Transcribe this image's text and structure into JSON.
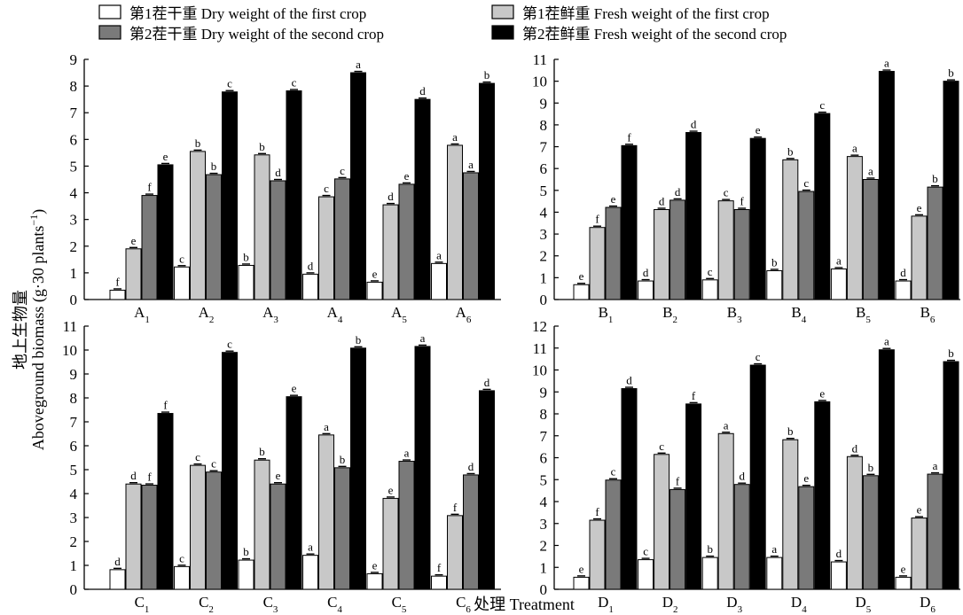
{
  "legend": [
    {
      "label": "第1茬干重 Dry weight of the first crop",
      "color": "#ffffff"
    },
    {
      "label": "第2茬干重 Dry weight of the second crop",
      "color": "#7a7a7a"
    },
    {
      "label": "第1茬鲜重 Fresh weight of the first crop",
      "color": "#c8c8c8"
    },
    {
      "label": "第2茬鲜重 Fresh weight of the second crop",
      "color": "#000000"
    }
  ],
  "ylabel_cn": "地上生物量",
  "ylabel_en": "Aboveground biomass (g·30 plants",
  "ylabel_sup": "−1",
  "ylabel_end": ")",
  "xlabel": "处理 Treatment",
  "chart_data": [
    {
      "type": "bar",
      "panel": "A",
      "categories": [
        "A1",
        "A2",
        "A3",
        "A4",
        "A5",
        "A6"
      ],
      "ylim": [
        0,
        9
      ],
      "series": [
        {
          "name": "第1茬干重 Dry weight of the first crop",
          "values": [
            0.35,
            1.22,
            1.28,
            0.95,
            0.65,
            1.35
          ],
          "sig": [
            "f",
            "c",
            "b",
            "d",
            "e",
            "a"
          ]
        },
        {
          "name": "第1茬鲜重 Fresh weight of the first crop",
          "values": [
            1.9,
            5.55,
            5.42,
            3.85,
            3.55,
            5.78
          ],
          "sig": [
            "e",
            "b",
            "b",
            "c",
            "d",
            "a"
          ]
        },
        {
          "name": "第2茬干重 Dry weight of the second crop",
          "values": [
            3.9,
            4.68,
            4.45,
            4.52,
            4.32,
            4.75
          ],
          "sig": [
            "f",
            "b",
            "d",
            "c",
            "e",
            "a"
          ]
        },
        {
          "name": "第2茬鲜重 Fresh weight of the second crop",
          "values": [
            5.05,
            7.78,
            7.82,
            8.5,
            7.5,
            8.1
          ],
          "sig": [
            "e",
            "c",
            "c",
            "a",
            "d",
            "b"
          ]
        }
      ]
    },
    {
      "type": "bar",
      "panel": "B",
      "categories": [
        "B1",
        "B2",
        "B3",
        "B4",
        "B5",
        "B6"
      ],
      "ylim": [
        0,
        11
      ],
      "series": [
        {
          "name": "第1茬干重 Dry weight of the first crop",
          "values": [
            0.68,
            0.85,
            0.9,
            1.32,
            1.4,
            0.85
          ],
          "sig": [
            "e",
            "d",
            "c",
            "b",
            "a",
            "d"
          ]
        },
        {
          "name": "第1茬鲜重 Fresh weight of the first crop",
          "values": [
            3.3,
            4.12,
            4.52,
            6.4,
            6.55,
            3.82
          ],
          "sig": [
            "f",
            "d",
            "c",
            "b",
            "a",
            "e"
          ]
        },
        {
          "name": "第2茬干重 Dry weight of the second crop",
          "values": [
            4.22,
            4.55,
            4.12,
            4.95,
            5.5,
            5.15
          ],
          "sig": [
            "e",
            "d",
            "f",
            "c",
            "a",
            "b"
          ]
        },
        {
          "name": "第2茬鲜重 Fresh weight of the second crop",
          "values": [
            7.05,
            7.65,
            7.38,
            8.52,
            10.45,
            10.0
          ],
          "sig": [
            "f",
            "d",
            "e",
            "c",
            "a",
            "b"
          ]
        }
      ]
    },
    {
      "type": "bar",
      "panel": "C",
      "categories": [
        "C1",
        "C2",
        "C3",
        "C4",
        "C5",
        "C6"
      ],
      "ylim": [
        0,
        11
      ],
      "series": [
        {
          "name": "第1茬干重 Dry weight of the first crop",
          "values": [
            0.82,
            0.95,
            1.22,
            1.42,
            0.65,
            0.55
          ],
          "sig": [
            "d",
            "c",
            "b",
            "a",
            "e",
            "f"
          ]
        },
        {
          "name": "第1茬鲜重 Fresh weight of the first crop",
          "values": [
            4.4,
            5.18,
            5.4,
            6.45,
            3.8,
            3.08
          ],
          "sig": [
            "d",
            "c",
            "b",
            "a",
            "e",
            "f"
          ]
        },
        {
          "name": "第2茬干重 Dry weight of the second crop",
          "values": [
            4.35,
            4.9,
            4.4,
            5.08,
            5.35,
            4.78
          ],
          "sig": [
            "f",
            "c",
            "e",
            "b",
            "a",
            "d"
          ]
        },
        {
          "name": "第2茬鲜重 Fresh weight of the second crop",
          "values": [
            7.35,
            9.9,
            8.05,
            10.08,
            10.15,
            8.3
          ],
          "sig": [
            "f",
            "c",
            "e",
            "b",
            "a",
            "d"
          ]
        }
      ]
    },
    {
      "type": "bar",
      "panel": "D",
      "categories": [
        "D1",
        "D2",
        "D3",
        "D4",
        "D5",
        "D6"
      ],
      "ylim": [
        0,
        12
      ],
      "series": [
        {
          "name": "第1茬干重 Dry weight of the first crop",
          "values": [
            0.55,
            1.35,
            1.45,
            1.45,
            1.25,
            0.55
          ],
          "sig": [
            "e",
            "c",
            "b",
            "a",
            "d",
            "e"
          ]
        },
        {
          "name": "第1茬鲜重 Fresh weight of the first crop",
          "values": [
            3.15,
            6.15,
            7.1,
            6.82,
            6.05,
            3.25
          ],
          "sig": [
            "f",
            "c",
            "a",
            "b",
            "d",
            "e"
          ]
        },
        {
          "name": "第2茬干重 Dry weight of the second crop",
          "values": [
            4.98,
            4.55,
            4.78,
            4.68,
            5.18,
            5.25
          ],
          "sig": [
            "c",
            "f",
            "d",
            "e",
            "b",
            "a"
          ]
        },
        {
          "name": "第2茬鲜重 Fresh weight of the second crop",
          "values": [
            9.15,
            8.45,
            10.22,
            8.55,
            10.92,
            10.38
          ],
          "sig": [
            "d",
            "f",
            "c",
            "e",
            "a",
            "b"
          ]
        }
      ]
    }
  ]
}
